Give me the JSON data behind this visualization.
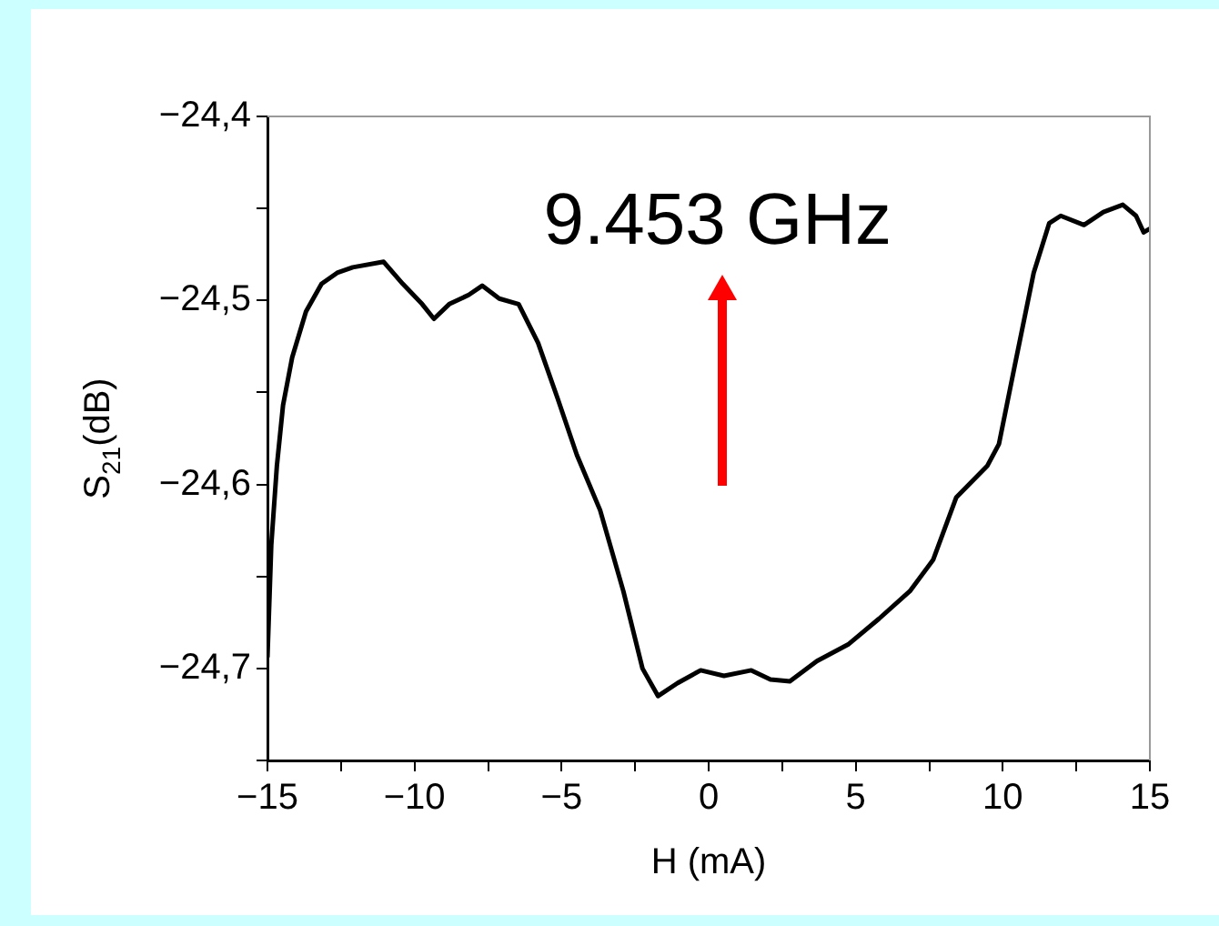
{
  "chart_data": {
    "type": "line",
    "xlabel": "H (mA)",
    "ylabel": "S$_{21}$(dB)",
    "annotations": [
      "9.453 GHz"
    ],
    "xlim": [
      -15,
      15
    ],
    "xticks": [
      {
        "value": -15,
        "label": "−15"
      },
      {
        "value": -12.5,
        "label": null
      },
      {
        "value": -10,
        "label": "−10"
      },
      {
        "value": -7.5,
        "label": null
      },
      {
        "value": -5,
        "label": "−5"
      },
      {
        "value": -2.5,
        "label": null
      },
      0,
      {
        "value": 2.5,
        "label": null
      },
      5,
      {
        "value": 7.5,
        "label": null
      },
      10,
      {
        "value": 12.5,
        "label": null
      },
      15
    ],
    "ylim": [
      -24.75,
      -24.4
    ],
    "yticks": [
      {
        "value": -24.75,
        "label": null
      },
      {
        "value": -24.7,
        "label": "−24,7"
      },
      {
        "value": -24.65,
        "label": null
      },
      {
        "value": -24.6,
        "label": "−24,6"
      },
      {
        "value": -24.55,
        "label": null
      },
      {
        "value": -24.5,
        "label": "−24,5"
      },
      {
        "value": -24.45,
        "label": null
      },
      {
        "value": -24.4,
        "label": "−24,4"
      }
    ],
    "grid": false,
    "legend": false,
    "marker": "none",
    "line_style": "solid",
    "series": [
      {
        "color": "#000000",
        "x": [
          -15,
          -14.87,
          -14.68,
          -14.47,
          -14.16,
          -13.69,
          -13.16,
          -12.63,
          -12.1,
          -11.05,
          -10.4,
          -9.74,
          -9.34,
          -8.82,
          -8.16,
          -7.7,
          -7.12,
          -6.46,
          -5.8,
          -5.14,
          -4.48,
          -3.69,
          -2.9,
          -2.25,
          -1.72,
          -1.06,
          -0.27,
          0.52,
          1.45,
          2.1,
          2.76,
          3.68,
          4.74,
          5.79,
          6.84,
          7.63,
          8.42,
          9.47,
          9.87,
          10.4,
          11.05,
          11.58,
          11.97,
          12.76,
          13.42,
          14.08,
          14.53,
          14.79,
          15
        ],
        "values": [
          -24.694,
          -24.633,
          -24.59,
          -24.557,
          -24.531,
          -24.506,
          -24.491,
          -24.485,
          -24.482,
          -24.479,
          -24.491,
          -24.502,
          -24.51,
          -24.502,
          -24.497,
          -24.492,
          -24.499,
          -24.502,
          -24.523,
          -24.553,
          -24.584,
          -24.614,
          -24.658,
          -24.7,
          -24.715,
          -24.708,
          -24.701,
          -24.704,
          -24.701,
          -24.706,
          -24.707,
          -24.696,
          -24.687,
          -24.673,
          -24.658,
          -24.641,
          -24.607,
          -24.59,
          -24.578,
          -24.536,
          -24.485,
          -24.458,
          -24.454,
          -24.459,
          -24.452,
          -24.448,
          -24.454,
          -24.463,
          -24.461
        ]
      }
    ]
  }
}
